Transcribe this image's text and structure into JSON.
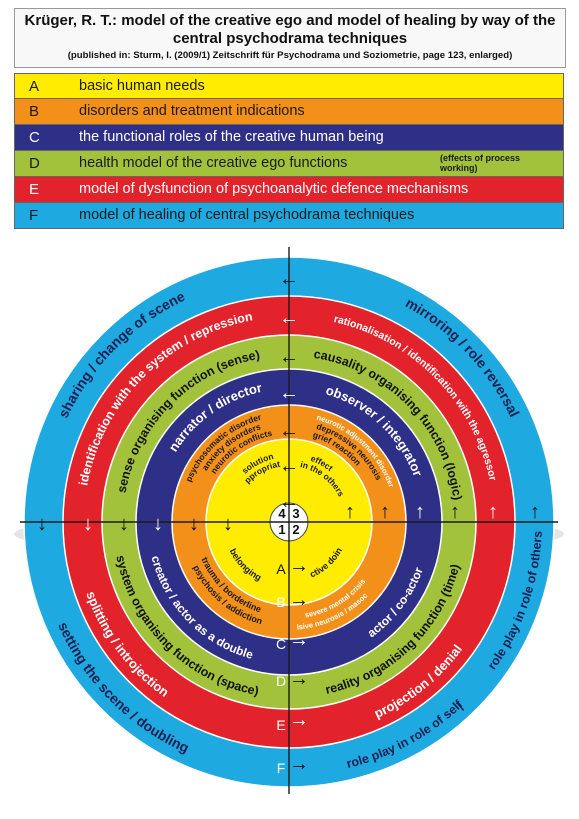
{
  "header": {
    "title": "Krüger, R. T.: model of the creative ego and model of healing by way of the central psychodrama techniques",
    "subtitle": "(published in: Sturm, I. (2009/1) Zeitschrift für Psychodrama und Soziometrie, page 123, enlarged)"
  },
  "legend": [
    {
      "key": "A",
      "text": "basic human needs",
      "color": "#ffec00",
      "text_color": "#1a1a1a"
    },
    {
      "key": "B",
      "text": "disorders and treatment indications",
      "color": "#f39019",
      "text_color": "#1a1a1a"
    },
    {
      "key": "C",
      "text": "the functional roles of the creative human being",
      "color": "#2e2f86",
      "text_color": "#ffffff"
    },
    {
      "key": "D",
      "text": "health model of the creative ego functions",
      "note": "(effects of process working)",
      "color": "#a3c23c",
      "text_color": "#1a1a1a"
    },
    {
      "key": "E",
      "text": "model of dysfunction of psychoanalytic defence mechanisms",
      "color": "#e3232b",
      "text_color": "#ffffff"
    },
    {
      "key": "F",
      "text": "model of healing of central psychodrama techniques",
      "color": "#1fa9e1",
      "text_color": "#1a1a1a"
    }
  ],
  "diagram": {
    "center_numbers": [
      "4",
      "3",
      "1",
      "2"
    ],
    "ring_letters": [
      "A",
      "B",
      "C",
      "D",
      "E",
      "F"
    ],
    "ring_F": {
      "top_left": "sharing / change of scene",
      "top_right": "mirroring / role reversal",
      "bottom_left": "setting the scene / doubling",
      "bottom_right_1": "role play in role of self",
      "bottom_right_2": "role play in role of others"
    },
    "ring_E": {
      "top_left": "identification with the system / repression",
      "top_right": "rationalisation / identification with the agressor",
      "bottom_left": "splitting / introjection",
      "bottom_right": "projection / denial"
    },
    "ring_D": {
      "top_left": "sense organising function (sense)",
      "top_right": "causality organising function (logic)",
      "bottom_left": "system organising function (space)",
      "bottom_right": "reality organising function (time)"
    },
    "ring_C": {
      "top_left": "narrator / director",
      "top_right": "observer / integrator",
      "bottom_left": "creator / actor as a double",
      "bottom_right": "actor / co-actor"
    },
    "ring_B": {
      "tl_1": "psychosomatic disorder",
      "tl_2": "anxiety disorders",
      "tl_3": "neurotic conflicts",
      "tr_1": "neurotic adjustment disorder",
      "tr_2": "depressive neurosis",
      "tr_3": "grief reaction",
      "bl_1": "trauma / borderline",
      "bl_2": "psychosis / addiction",
      "br_1": "severe mental crisis",
      "br_2": "compulsive neurosis / masochismus"
    },
    "ring_A": {
      "tl_1": "solution",
      "tl_2": "appropriate",
      "tr_1": "effect",
      "tr_2": "in the others",
      "bl": "belonging",
      "br": "active doing"
    }
  }
}
